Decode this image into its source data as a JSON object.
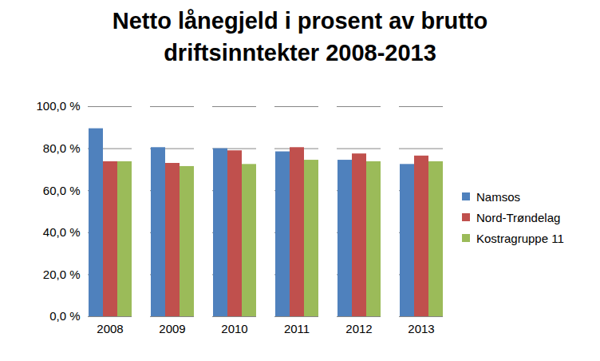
{
  "chart_data": {
    "type": "bar",
    "title": "Netto lånegjeld i prosent av brutto driftsinntekter 2008-2013",
    "categories": [
      "2008",
      "2009",
      "2010",
      "2011",
      "2012",
      "2013"
    ],
    "series": [
      {
        "name": "Namsos",
        "color": "#4f81bd",
        "values": [
          89.5,
          80.5,
          80.0,
          78.5,
          74.5,
          72.5
        ]
      },
      {
        "name": "Nord-Trøndelag",
        "color": "#c0504d",
        "values": [
          73.8,
          73.0,
          79.0,
          80.5,
          77.5,
          76.5
        ]
      },
      {
        "name": "Kostragruppe 11",
        "color": "#9bbb59",
        "values": [
          73.8,
          71.5,
          72.5,
          74.5,
          73.8,
          73.8
        ]
      }
    ],
    "ylim": [
      0,
      100
    ],
    "yticks": [
      {
        "value": 0,
        "label": "0,0 %"
      },
      {
        "value": 20,
        "label": "20,0 %"
      },
      {
        "value": 40,
        "label": "40,0 %"
      },
      {
        "value": 60,
        "label": "60,0 %"
      },
      {
        "value": 80,
        "label": "80,0 %"
      },
      {
        "value": 100,
        "label": "100,0 %"
      }
    ],
    "grid": true,
    "legend": "right"
  }
}
